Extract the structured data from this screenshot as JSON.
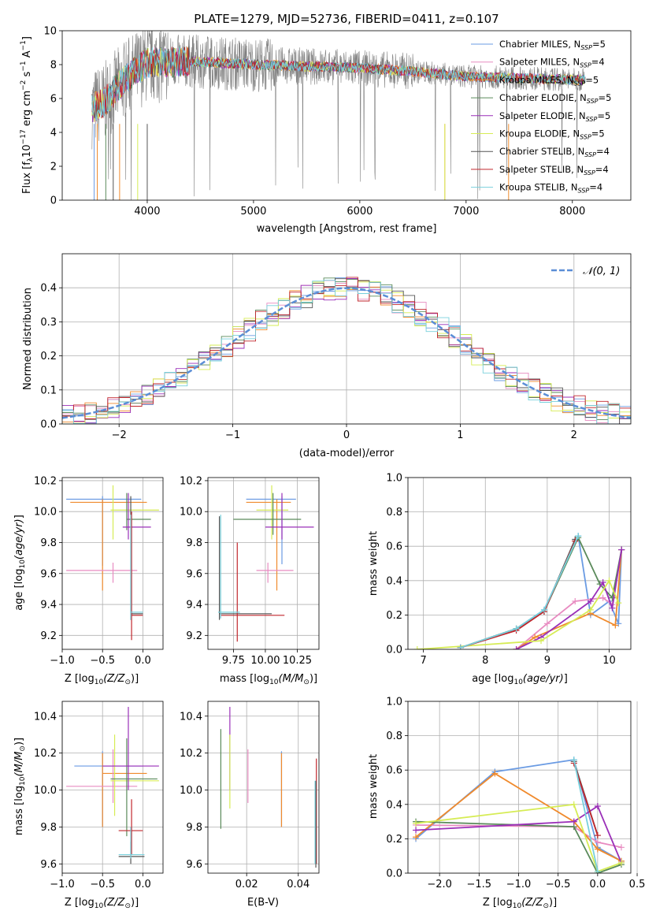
{
  "colors": {
    "chabrier_miles": "#6a9be3",
    "salpeter_miles": "#e88bc1",
    "kroupa_miles": "#f08a2c",
    "chabrier_elodie": "#5a8a5a",
    "salpeter_elodie": "#9a2fb8",
    "kroupa_elodie": "#d6ec55",
    "chabrier_stelib": "#555555",
    "salpeter_stelib": "#c1272d",
    "kroupa_stelib": "#78d0dc",
    "normal": "#5b8ed6",
    "data": "#808080"
  },
  "chart_data": [
    {
      "id": "spectrum",
      "type": "line",
      "title": "PLATE=1279, MJD=52736, FIBERID=0411, z=0.107",
      "xlabel": "wavelength [Angstrom, rest frame]",
      "ylabel": "Flux [f_λ10^-17 erg cm^-2 s^-1 A^-1]",
      "xlim": [
        3200,
        8550
      ],
      "ylim": [
        0,
        10
      ],
      "xticks": [
        "4000",
        "5000",
        "6000",
        "7000",
        "8000"
      ],
      "yticks": [
        "0",
        "2",
        "4",
        "6",
        "8",
        "10"
      ],
      "wavelength_range": [
        3480,
        8120
      ],
      "continuum": {
        "x": [
          3480,
          3600,
          3800,
          4000,
          4400,
          5000,
          5500,
          6000,
          6500,
          7000,
          7500,
          8000
        ],
        "y": [
          5.4,
          5.8,
          7.2,
          8.1,
          8.2,
          8.0,
          7.9,
          7.8,
          7.6,
          7.3,
          7.2,
          7.1
        ]
      },
      "legend": [
        {
          "label": "Chabrier MILES, N",
          "sub": "SSP",
          "suffix": "=5",
          "color": "#6a9be3"
        },
        {
          "label": "Salpeter MILES, N",
          "sub": "SSP",
          "suffix": "=4",
          "color": "#e88bc1"
        },
        {
          "label": "Kroupa MILES, N",
          "sub": "SSP",
          "suffix": "=5",
          "color": "#f08a2c"
        },
        {
          "label": "Chabrier ELODIE, N",
          "sub": "SSP",
          "suffix": "=5",
          "color": "#5a8a5a"
        },
        {
          "label": "Salpeter ELODIE, N",
          "sub": "SSP",
          "suffix": "=5",
          "color": "#9a2fb8"
        },
        {
          "label": "Kroupa ELODIE, N",
          "sub": "SSP",
          "suffix": "=5",
          "color": "#d6ec55"
        },
        {
          "label": "Chabrier STELIB, N",
          "sub": "SSP",
          "suffix": "=4",
          "color": "#555555"
        },
        {
          "label": "Salpeter STELIB, N",
          "sub": "SSP",
          "suffix": "=4",
          "color": "#c1272d"
        },
        {
          "label": "Kroupa STELIB, N",
          "sub": "SSP",
          "suffix": "=4",
          "color": "#78d0dc"
        }
      ]
    },
    {
      "id": "residuals",
      "type": "step",
      "xlabel": "(data-model)/error",
      "ylabel": "Normed distribution",
      "xlim": [
        -2.5,
        2.5
      ],
      "ylim": [
        0,
        0.5
      ],
      "xticks": [
        "−2",
        "−1",
        "0",
        "1",
        "2"
      ],
      "yticks": [
        "0.0",
        "0.1",
        "0.2",
        "0.3",
        "0.4"
      ],
      "legend_label": "N(0, 1)",
      "bin_width": 0.1
    },
    {
      "id": "age_vs_z",
      "type": "errorbar",
      "xlabel": "Z [log10(Z/Z⊙)]",
      "ylabel": "age  [log10(age/yr)]",
      "xlim": [
        -1.0,
        0.25
      ],
      "ylim": [
        9.11,
        10.22
      ],
      "xticks": [
        "−1.0",
        "−0.5",
        "0.0"
      ],
      "yticks": [
        "9.2",
        "9.4",
        "9.6",
        "9.8",
        "10.0",
        "10.2"
      ],
      "points": [
        {
          "c": "#6a9be3",
          "x": -0.5,
          "xe": [
            -0.95,
            -0.02
          ],
          "y": 10.08,
          "ye": [
            9.65,
            10.1
          ]
        },
        {
          "c": "#f08a2c",
          "x": -0.5,
          "xe": [
            -0.9,
            0.05
          ],
          "y": 10.06,
          "ye": [
            9.49,
            10.08
          ]
        },
        {
          "c": "#e88bc1",
          "x": -0.37,
          "xe": [
            -0.95,
            -0.07
          ],
          "y": 9.62,
          "ye": [
            9.54,
            9.67
          ]
        },
        {
          "c": "#d6ec55",
          "x": -0.37,
          "xe": [
            -0.4,
            0.2
          ],
          "y": 10.01,
          "ye": [
            9.82,
            10.17
          ]
        },
        {
          "c": "#5a8a5a",
          "x": -0.2,
          "xe": [
            -0.2,
            0.1
          ],
          "y": 9.95,
          "ye": [
            9.88,
            10.12
          ]
        },
        {
          "c": "#9a2fb8",
          "x": -0.18,
          "xe": [
            -0.25,
            0.1
          ],
          "y": 9.9,
          "ye": [
            9.82,
            10.12
          ]
        },
        {
          "c": "#555555",
          "x": -0.15,
          "xe": [
            -0.15,
            0.0
          ],
          "y": 9.34,
          "ye": [
            9.3,
            10.1
          ]
        },
        {
          "c": "#c1272d",
          "x": -0.14,
          "xe": [
            -0.14,
            0.0
          ],
          "y": 9.33,
          "ye": [
            9.17,
            10.0
          ]
        },
        {
          "c": "#78d0dc",
          "x": -0.15,
          "xe": [
            -0.15,
            0.0
          ],
          "y": 9.35,
          "ye": [
            9.3,
            9.98
          ]
        }
      ]
    },
    {
      "id": "age_vs_mass",
      "type": "errorbar",
      "xlabel": "mass [log10(M/M⊙)]",
      "ylabel": "",
      "xlim": [
        9.55,
        10.42
      ],
      "ylim": [
        9.11,
        10.22
      ],
      "xticks": [
        "9.75",
        "10.00",
        "10.25"
      ],
      "yticks": [
        "9.2",
        "9.4",
        "9.6",
        "9.8",
        "10.0",
        "10.2"
      ],
      "points": [
        {
          "c": "#6a9be3",
          "x": 10.13,
          "xe": [
            9.85,
            10.24
          ],
          "y": 10.08,
          "ye": [
            9.66,
            10.1
          ]
        },
        {
          "c": "#f08a2c",
          "x": 10.09,
          "xe": [
            9.85,
            10.2
          ],
          "y": 10.06,
          "ye": [
            9.49,
            10.08
          ]
        },
        {
          "c": "#e88bc1",
          "x": 10.02,
          "xe": [
            9.93,
            10.22
          ],
          "y": 9.62,
          "ye": [
            9.54,
            9.67
          ]
        },
        {
          "c": "#d6ec55",
          "x": 10.05,
          "xe": [
            9.93,
            10.18
          ],
          "y": 10.01,
          "ye": [
            9.82,
            10.17
          ]
        },
        {
          "c": "#5a8a5a",
          "x": 10.06,
          "xe": [
            9.75,
            10.28
          ],
          "y": 9.95,
          "ye": [
            9.85,
            10.12
          ]
        },
        {
          "c": "#9a2fb8",
          "x": 10.13,
          "xe": [
            10.0,
            10.38
          ],
          "y": 9.9,
          "ye": [
            9.82,
            10.12
          ]
        },
        {
          "c": "#555555",
          "x": 9.64,
          "xe": [
            9.64,
            10.05
          ],
          "y": 9.34,
          "ye": [
            9.3,
            9.97
          ]
        },
        {
          "c": "#c1272d",
          "x": 9.78,
          "xe": [
            9.65,
            10.15
          ],
          "y": 9.33,
          "ye": [
            9.16,
            9.8
          ]
        },
        {
          "c": "#78d0dc",
          "x": 9.65,
          "xe": [
            9.63,
            9.8
          ],
          "y": 9.35,
          "ye": [
            9.31,
            9.98
          ]
        }
      ]
    },
    {
      "id": "mass_weight_vs_age",
      "type": "line",
      "xlabel": "age  [log10(age/yr)]",
      "ylabel": "mass weight",
      "xlim": [
        6.75,
        10.35
      ],
      "ylim": [
        0,
        1.0
      ],
      "xticks": [
        "7",
        "8",
        "9",
        "10"
      ],
      "yticks": [
        "0.0",
        "0.2",
        "0.4",
        "0.6",
        "0.8",
        "1.0"
      ],
      "series": [
        {
          "c": "#6a9be3",
          "x": [
            7.6,
            8.5,
            8.95,
            9.5,
            9.7,
            10.0,
            10.15,
            10.2
          ],
          "y": [
            0.01,
            0.12,
            0.23,
            0.66,
            0.2,
            0.28,
            0.15,
            0.58
          ]
        },
        {
          "c": "#e88bc1",
          "x": [
            8.5,
            9.0,
            9.45,
            9.9,
            10.05,
            10.2
          ],
          "y": [
            0.0,
            0.15,
            0.28,
            0.3,
            0.26,
            0.58
          ]
        },
        {
          "c": "#f08a2c",
          "x": [
            8.5,
            8.8,
            9.7,
            10.1,
            10.2
          ],
          "y": [
            0.0,
            0.07,
            0.21,
            0.14,
            0.58
          ]
        },
        {
          "c": "#5a8a5a",
          "x": [
            7.6,
            8.5,
            8.95,
            9.5,
            9.85,
            10.05,
            10.2
          ],
          "y": [
            0.01,
            0.12,
            0.22,
            0.65,
            0.38,
            0.3,
            0.58
          ]
        },
        {
          "c": "#9a2fb8",
          "x": [
            8.5,
            8.9,
            9.7,
            9.9,
            10.05,
            10.2
          ],
          "y": [
            0.0,
            0.07,
            0.28,
            0.39,
            0.24,
            0.58
          ]
        },
        {
          "c": "#d6ec55",
          "x": [
            6.9,
            8.9,
            9.7,
            10.0,
            10.15
          ],
          "y": [
            0.0,
            0.05,
            0.23,
            0.4,
            0.27
          ]
        },
        {
          "c": "#555555",
          "x": [
            7.6,
            8.5,
            8.95,
            9.45
          ],
          "y": [
            0.01,
            0.12,
            0.22,
            0.64
          ]
        },
        {
          "c": "#c1272d",
          "x": [
            7.6,
            8.5,
            8.95,
            9.45
          ],
          "y": [
            0.01,
            0.11,
            0.22,
            0.63
          ]
        },
        {
          "c": "#78d0dc",
          "x": [
            7.6,
            8.5,
            8.95,
            9.5
          ],
          "y": [
            0.01,
            0.12,
            0.23,
            0.66
          ]
        }
      ]
    },
    {
      "id": "mass_vs_z",
      "type": "errorbar",
      "xlabel": "Z [log10(Z/Z⊙)]",
      "ylabel": "mass [log10(M/M⊙)]",
      "xlim": [
        -1.0,
        0.25
      ],
      "ylim": [
        9.55,
        10.48
      ],
      "xticks": [
        "−1.0",
        "−0.5",
        "0.0"
      ],
      "yticks": [
        "9.6",
        "9.8",
        "10.0",
        "10.2",
        "10.4"
      ],
      "points": [
        {
          "c": "#6a9be3",
          "x": -0.5,
          "xe": [
            -0.85,
            0.0
          ],
          "y": 10.13,
          "ye": [
            9.8,
            10.21
          ]
        },
        {
          "c": "#f08a2c",
          "x": -0.5,
          "xe": [
            -0.5,
            0.05
          ],
          "y": 10.09,
          "ye": [
            9.8,
            10.2
          ]
        },
        {
          "c": "#e88bc1",
          "x": -0.37,
          "xe": [
            -0.95,
            -0.07
          ],
          "y": 10.02,
          "ye": [
            9.93,
            10.22
          ]
        },
        {
          "c": "#d6ec55",
          "x": -0.35,
          "xe": [
            -0.4,
            0.2
          ],
          "y": 10.05,
          "ye": [
            9.86,
            10.3
          ]
        },
        {
          "c": "#5a8a5a",
          "x": -0.2,
          "xe": [
            -0.4,
            0.18
          ],
          "y": 10.06,
          "ye": [
            9.75,
            10.28
          ]
        },
        {
          "c": "#9a2fb8",
          "x": -0.18,
          "xe": [
            -0.5,
            0.2
          ],
          "y": 10.13,
          "ye": [
            10.0,
            10.45
          ]
        },
        {
          "c": "#555555",
          "x": -0.15,
          "xe": [
            -0.3,
            0.02
          ],
          "y": 9.64,
          "ye": [
            9.6,
            9.72
          ]
        },
        {
          "c": "#c1272d",
          "x": -0.14,
          "xe": [
            -0.3,
            0.0
          ],
          "y": 9.78,
          "ye": [
            9.65,
            9.95
          ]
        },
        {
          "c": "#78d0dc",
          "x": -0.15,
          "xe": [
            -0.3,
            0.02
          ],
          "y": 9.65,
          "ye": [
            9.63,
            9.8
          ]
        }
      ]
    },
    {
      "id": "mass_vs_ebv",
      "type": "errorbar",
      "xlabel": "E(B-V)",
      "ylabel": "",
      "xlim": [
        0.005,
        0.048
      ],
      "ylim": [
        9.55,
        10.48
      ],
      "xticks": [
        "0.02",
        "0.04"
      ],
      "yticks": [
        "9.6",
        "9.8",
        "10.0",
        "10.2",
        "10.4"
      ],
      "points": [
        {
          "c": "#5a8a5a",
          "x": 0.01,
          "y": 10.06,
          "ye": [
            9.79,
            10.33
          ]
        },
        {
          "c": "#9a2fb8",
          "x": 0.0135,
          "y": 10.13,
          "ye": [
            10.0,
            10.45
          ]
        },
        {
          "c": "#d6ec55",
          "x": 0.0135,
          "y": 10.05,
          "ye": [
            9.9,
            10.3
          ]
        },
        {
          "c": "#e88bc1",
          "x": 0.0205,
          "y": 10.02,
          "ye": [
            9.93,
            10.22
          ]
        },
        {
          "c": "#6a9be3",
          "x": 0.0335,
          "y": 10.13,
          "ye": [
            9.8,
            10.21
          ]
        },
        {
          "c": "#f08a2c",
          "x": 0.0335,
          "y": 10.09,
          "ye": [
            9.8,
            10.2
          ]
        },
        {
          "c": "#c1272d",
          "x": 0.047,
          "y": 9.78,
          "ye": [
            9.6,
            10.17
          ]
        },
        {
          "c": "#555555",
          "x": 0.0468,
          "y": 9.64,
          "ye": [
            9.58,
            10.05
          ]
        },
        {
          "c": "#78d0dc",
          "x": 0.0465,
          "y": 9.65,
          "ye": [
            9.6,
            10.05
          ]
        }
      ]
    },
    {
      "id": "mass_weight_vs_z",
      "type": "line",
      "xlabel": "Z [log10(Z/Z⊙)]",
      "ylabel": "mass weight",
      "xlim": [
        -2.4,
        0.42
      ],
      "ylim": [
        0,
        1.0
      ],
      "xticks": [
        "−2.0",
        "−1.5",
        "−1.0",
        "−0.5",
        "0.0",
        "0.5"
      ],
      "yticks": [
        "0.0",
        "0.2",
        "0.4",
        "0.6",
        "0.8",
        "1.0"
      ],
      "series": [
        {
          "c": "#6a9be3",
          "x": [
            -2.3,
            -1.3,
            -0.3,
            0.0,
            0.3
          ],
          "y": [
            0.2,
            0.59,
            0.66,
            0.15,
            0.07
          ]
        },
        {
          "c": "#e88bc1",
          "x": [
            -2.3,
            -0.3,
            0.0,
            0.3
          ],
          "y": [
            0.28,
            0.27,
            0.18,
            0.15
          ]
        },
        {
          "c": "#f08a2c",
          "x": [
            -2.3,
            -1.3,
            -0.3,
            0.0,
            0.3
          ],
          "y": [
            0.21,
            0.58,
            0.3,
            0.14,
            0.07
          ]
        },
        {
          "c": "#5a8a5a",
          "x": [
            -2.3,
            -0.3,
            0.0,
            0.3
          ],
          "y": [
            0.3,
            0.27,
            0.0,
            0.05
          ]
        },
        {
          "c": "#9a2fb8",
          "x": [
            -2.3,
            -0.3,
            0.0,
            0.3
          ],
          "y": [
            0.25,
            0.3,
            0.39,
            0.06
          ]
        },
        {
          "c": "#d6ec55",
          "x": [
            -2.3,
            -0.3,
            0.0,
            0.3
          ],
          "y": [
            0.29,
            0.4,
            0.01,
            0.06
          ]
        },
        {
          "c": "#555555",
          "x": [
            -0.3,
            0.0
          ],
          "y": [
            0.65,
            0.22
          ]
        },
        {
          "c": "#c1272d",
          "x": [
            -0.3,
            0.0
          ],
          "y": [
            0.64,
            0.22
          ]
        },
        {
          "c": "#78d0dc",
          "x": [
            -0.3,
            0.0
          ],
          "y": [
            0.66,
            0.01
          ]
        }
      ]
    }
  ]
}
